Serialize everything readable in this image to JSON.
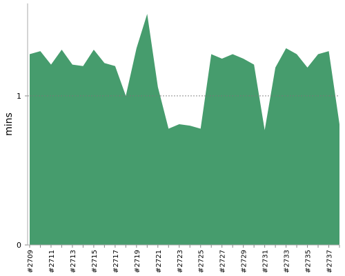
{
  "chart_data": {
    "type": "area",
    "y_label": "mins",
    "categories": [
      "#2709",
      null,
      "#2711",
      null,
      "#2713",
      null,
      "#2715",
      null,
      "#2717",
      null,
      "#2719",
      null,
      "#2721",
      null,
      "#2723",
      null,
      "#2725",
      null,
      "#2727",
      null,
      "#2729",
      null,
      "#2731",
      null,
      "#2733",
      null,
      "#2735",
      null,
      "#2737",
      null
    ],
    "values": [
      1.28,
      1.3,
      1.21,
      1.31,
      1.21,
      1.2,
      1.31,
      1.22,
      1.2,
      1.0,
      1.32,
      1.55,
      1.06,
      0.78,
      0.81,
      0.8,
      0.78,
      1.28,
      1.25,
      1.28,
      1.25,
      1.21,
      0.77,
      1.19,
      1.32,
      1.28,
      1.19,
      1.28,
      1.3,
      0.81
    ],
    "color": "#469c6d",
    "ylim": [
      0,
      1.62
    ],
    "yticks": [
      0,
      1
    ],
    "grid": true
  }
}
